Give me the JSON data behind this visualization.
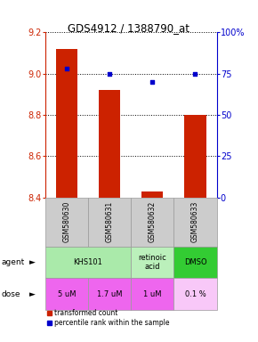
{
  "title": "GDS4912 / 1388790_at",
  "samples": [
    "GSM580630",
    "GSM580631",
    "GSM580632",
    "GSM580633"
  ],
  "bar_values": [
    9.12,
    8.92,
    8.43,
    8.8
  ],
  "percentile_values": [
    78,
    75,
    70,
    75
  ],
  "ylim_left": [
    8.4,
    9.2
  ],
  "ylim_right": [
    0,
    100
  ],
  "yticks_left": [
    8.4,
    8.6,
    8.8,
    9.0,
    9.2
  ],
  "yticks_right": [
    0,
    25,
    50,
    75,
    100
  ],
  "bar_color": "#cc2200",
  "dot_color": "#0000cc",
  "dose_labels": [
    "5 uM",
    "1.7 uM",
    "1 uM",
    "0.1 %"
  ],
  "dose_colors": [
    "#ee66ee",
    "#ee66ee",
    "#ee66ee",
    "#f8c8f8"
  ],
  "sample_bg": "#cccccc",
  "agent_groups": [
    {
      "cols": [
        0,
        1
      ],
      "text": "KHS101",
      "color": "#aaeaaa"
    },
    {
      "cols": [
        2
      ],
      "text": "retinoic\nacid",
      "color": "#bbf0bb"
    },
    {
      "cols": [
        3
      ],
      "text": "DMSO",
      "color": "#33cc33"
    }
  ],
  "legend_bar_label": "transformed count",
  "legend_dot_label": "percentile rank within the sample"
}
